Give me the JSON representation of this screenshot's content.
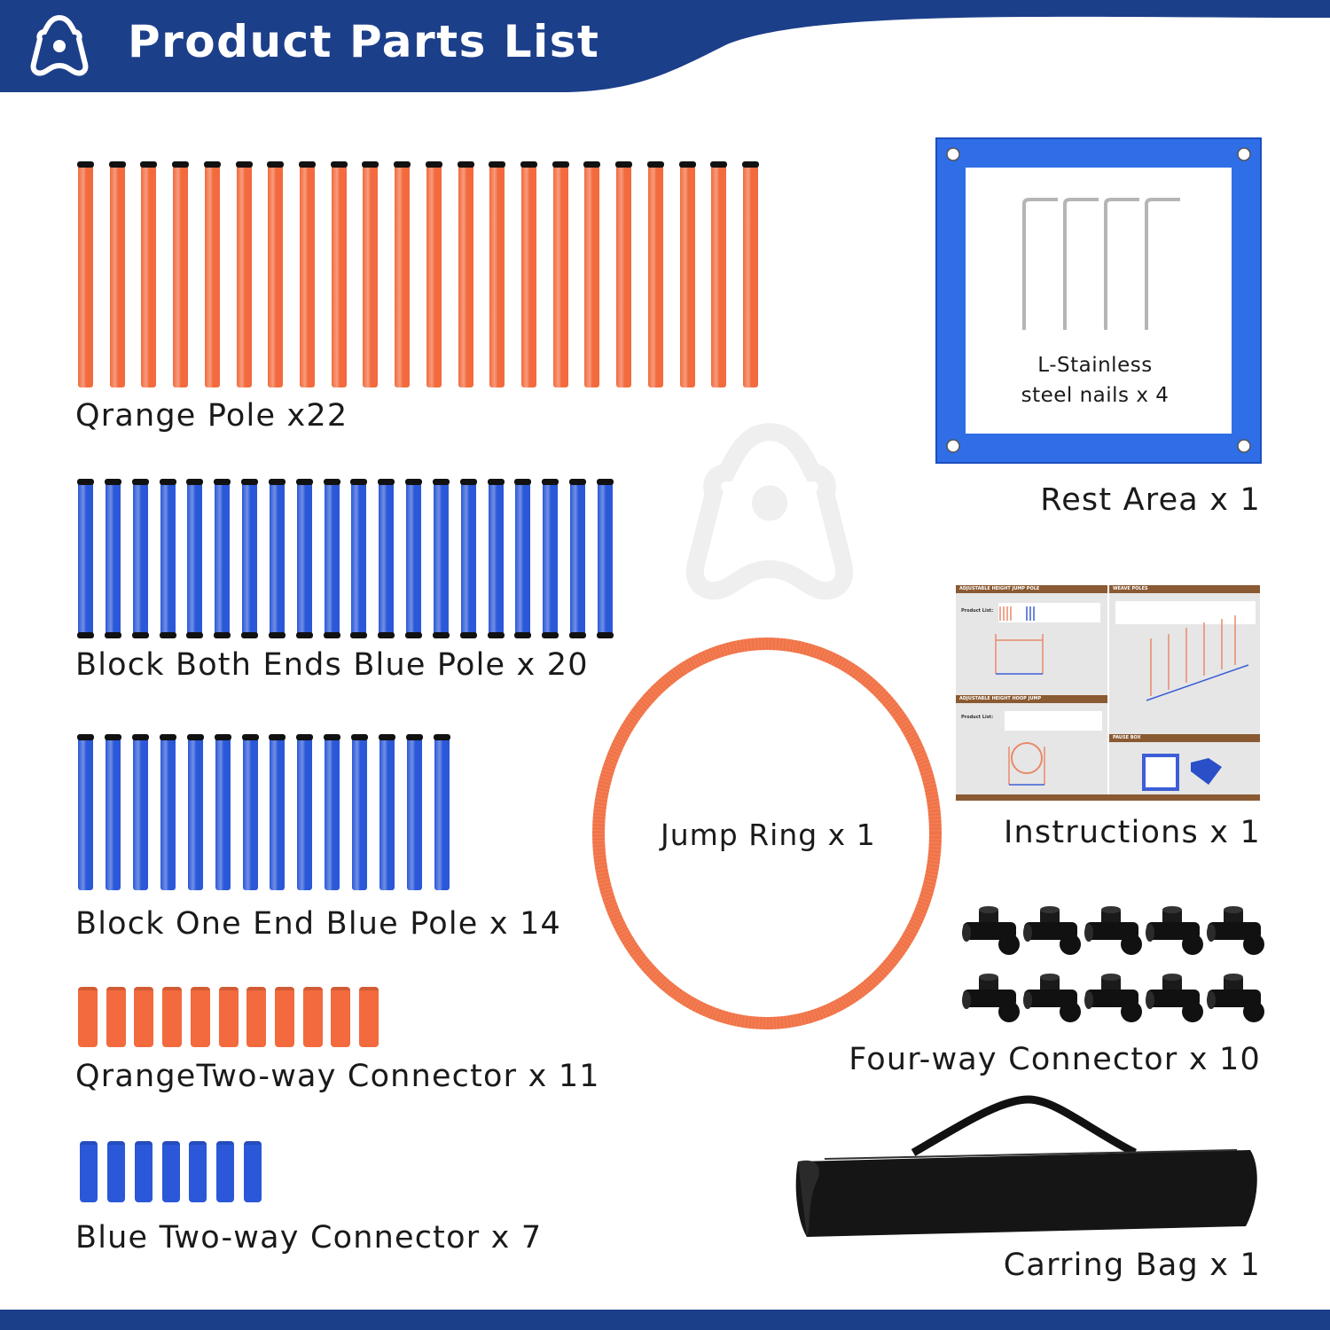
{
  "header": {
    "title": "Product Parts List",
    "logo_icon": "brand-a-logo-icon"
  },
  "colors": {
    "brand_blue": "#1c3f8a",
    "orange": "#f26a3d",
    "pole_blue": "#2b58d8",
    "rest_area_blue": "#2f6ee6",
    "instruction_brown": "#8a5a32"
  },
  "parts": {
    "orange_pole": {
      "label": "Qrange Pole x22",
      "count": 22
    },
    "both_ends_blue_pole": {
      "label": "Block Both Ends Blue Pole x 20",
      "count": 20
    },
    "one_end_blue_pole": {
      "label": "Block One End Blue Pole x 14",
      "count": 14
    },
    "orange_connector": {
      "label": "QrangeTwo-way Connector x 11",
      "count": 11
    },
    "blue_connector": {
      "label": "Blue Two-way Connector x 7",
      "count": 7
    },
    "rest_area": {
      "label": "Rest Area x 1",
      "nails_line1": "L-Stainless",
      "nails_line2": "steel nails x 4",
      "nail_count": 4
    },
    "jump_ring": {
      "label": "Jump Ring x 1"
    },
    "instructions": {
      "label": "Instructions x 1",
      "sections": [
        "ADJUSTABLE HEIGHT JUMP POLE",
        "WEAVE POLES",
        "ADJUSTABLE HEIGHT HOOP JUMP",
        "PAUSE BOX"
      ],
      "product_list_label": "Product List:"
    },
    "four_way_connector": {
      "label": "Four-way Connector x 10",
      "count": 10
    },
    "carrying_bag": {
      "label": "Carring Bag x 1"
    }
  }
}
